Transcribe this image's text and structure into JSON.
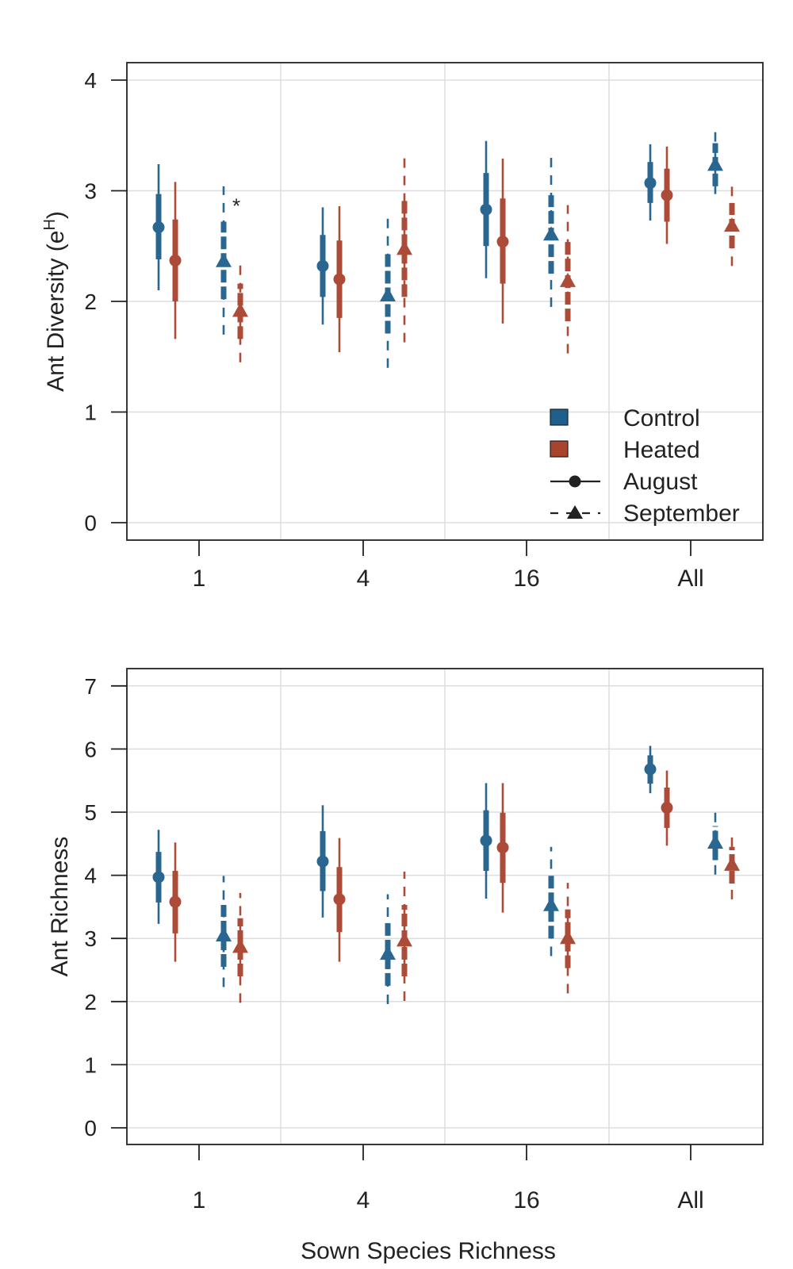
{
  "colors": {
    "control": "#1f5f8b",
    "heated": "#a8432e",
    "grid": "#dddddd",
    "axis": "#222222",
    "legend_line": "#222222"
  },
  "chart_data": [
    {
      "type": "interval-plot",
      "xlabel": "",
      "ylabel_main": "Ant Diversity (e",
      "ylabel_sup": "H",
      "ylabel_close": ")",
      "ylim": [
        0,
        4
      ],
      "yticks": [
        "0",
        "1",
        "2",
        "3",
        "4"
      ],
      "categories": [
        "1",
        "4",
        "16",
        "All"
      ],
      "annotation": {
        "text": "*",
        "category": "1",
        "series": "Control-September"
      },
      "legend": {
        "placement": "bottom-right",
        "entries": [
          {
            "label": "Control",
            "kind": "box",
            "color": "control"
          },
          {
            "label": "Heated",
            "kind": "box",
            "color": "heated"
          },
          {
            "label": "August",
            "kind": "line-circle"
          },
          {
            "label": "September",
            "kind": "dash-triangle"
          }
        ]
      },
      "series": [
        {
          "name": "Control",
          "month": "August",
          "color": "control",
          "marker": "circle",
          "dashed": false,
          "points": [
            {
              "mean": 2.67,
              "inner": [
                2.38,
                2.97
              ],
              "outer": [
                2.1,
                3.24
              ]
            },
            {
              "mean": 2.32,
              "inner": [
                2.04,
                2.6
              ],
              "outer": [
                1.79,
                2.85
              ]
            },
            {
              "mean": 2.83,
              "inner": [
                2.5,
                3.16
              ],
              "outer": [
                2.21,
                3.45
              ]
            },
            {
              "mean": 3.07,
              "inner": [
                2.89,
                3.26
              ],
              "outer": [
                2.73,
                3.42
              ]
            }
          ]
        },
        {
          "name": "Heated",
          "month": "August",
          "color": "heated",
          "marker": "circle",
          "dashed": false,
          "points": [
            {
              "mean": 2.37,
              "inner": [
                2.0,
                2.74
              ],
              "outer": [
                1.66,
                3.08
              ]
            },
            {
              "mean": 2.2,
              "inner": [
                1.85,
                2.55
              ],
              "outer": [
                1.54,
                2.86
              ]
            },
            {
              "mean": 2.54,
              "inner": [
                2.16,
                2.93
              ],
              "outer": [
                1.8,
                3.29
              ]
            },
            {
              "mean": 2.96,
              "inner": [
                2.72,
                3.2
              ],
              "outer": [
                2.52,
                3.4
              ]
            }
          ]
        },
        {
          "name": "Control",
          "month": "September",
          "color": "control",
          "marker": "triangle",
          "dashed": true,
          "points": [
            {
              "mean": 2.36,
              "inner": [
                2.02,
                2.72
              ],
              "outer": [
                1.7,
                3.04
              ]
            },
            {
              "mean": 2.05,
              "inner": [
                1.71,
                2.43
              ],
              "outer": [
                1.4,
                2.76
              ]
            },
            {
              "mean": 2.6,
              "inner": [
                2.25,
                2.96
              ],
              "outer": [
                1.95,
                3.3
              ]
            },
            {
              "mean": 3.23,
              "inner": [
                3.04,
                3.43
              ],
              "outer": [
                2.97,
                3.6
              ]
            }
          ]
        },
        {
          "name": "Heated",
          "month": "September",
          "color": "heated",
          "marker": "triangle",
          "dashed": true,
          "points": [
            {
              "mean": 1.91,
              "inner": [
                1.66,
                2.16
              ],
              "outer": [
                1.45,
                2.38
              ]
            },
            {
              "mean": 2.47,
              "inner": [
                2.04,
                2.93
              ],
              "outer": [
                1.63,
                3.35
              ]
            },
            {
              "mean": 2.18,
              "inner": [
                1.82,
                2.55
              ],
              "outer": [
                1.53,
                2.87
              ]
            },
            {
              "mean": 2.68,
              "inner": [
                2.48,
                2.89
              ],
              "outer": [
                2.32,
                3.08
              ]
            }
          ]
        }
      ]
    },
    {
      "type": "interval-plot",
      "xlabel": "Sown Species Richness",
      "ylabel_main": "Ant Richness",
      "ylabel_sup": "",
      "ylabel_close": "",
      "ylim": [
        0,
        7
      ],
      "yticks": [
        "0",
        "1",
        "2",
        "3",
        "4",
        "5",
        "6",
        "7"
      ],
      "categories": [
        "1",
        "4",
        "16",
        "All"
      ],
      "series": [
        {
          "name": "Control",
          "month": "August",
          "color": "control",
          "marker": "circle",
          "dashed": false,
          "points": [
            {
              "mean": 3.97,
              "inner": [
                3.57,
                4.37
              ],
              "outer": [
                3.23,
                4.72
              ]
            },
            {
              "mean": 4.22,
              "inner": [
                3.75,
                4.7
              ],
              "outer": [
                3.33,
                5.11
              ]
            },
            {
              "mean": 4.55,
              "inner": [
                4.07,
                5.03
              ],
              "outer": [
                3.63,
                5.46
              ]
            },
            {
              "mean": 5.68,
              "inner": [
                5.45,
                5.9
              ],
              "outer": [
                5.3,
                6.05
              ]
            }
          ]
        },
        {
          "name": "Heated",
          "month": "August",
          "color": "heated",
          "marker": "circle",
          "dashed": false,
          "points": [
            {
              "mean": 3.58,
              "inner": [
                3.08,
                4.07
              ],
              "outer": [
                2.63,
                4.52
              ]
            },
            {
              "mean": 3.62,
              "inner": [
                3.1,
                4.13
              ],
              "outer": [
                2.63,
                4.59
              ]
            },
            {
              "mean": 4.44,
              "inner": [
                3.88,
                4.99
              ],
              "outer": [
                3.41,
                5.46
              ]
            },
            {
              "mean": 5.07,
              "inner": [
                4.75,
                5.39
              ],
              "outer": [
                4.47,
                5.66
              ]
            }
          ]
        },
        {
          "name": "Control",
          "month": "September",
          "color": "control",
          "marker": "triangle",
          "dashed": true,
          "points": [
            {
              "mean": 3.04,
              "inner": [
                2.55,
                3.53
              ],
              "outer": [
                2.23,
                3.99
              ]
            },
            {
              "mean": 2.75,
              "inner": [
                2.25,
                3.25
              ],
              "outer": [
                1.96,
                3.7
              ]
            },
            {
              "mean": 3.52,
              "inner": [
                3.0,
                4.0
              ],
              "outer": [
                2.72,
                4.45
              ]
            },
            {
              "mean": 4.51,
              "inner": [
                4.24,
                4.78
              ],
              "outer": [
                4.01,
                5.02
              ]
            }
          ]
        },
        {
          "name": "Heated",
          "month": "September",
          "color": "heated",
          "marker": "triangle",
          "dashed": true,
          "points": [
            {
              "mean": 2.86,
              "inner": [
                2.4,
                3.32
              ],
              "outer": [
                1.98,
                3.72
              ]
            },
            {
              "mean": 2.96,
              "inner": [
                2.4,
                3.53
              ],
              "outer": [
                2.01,
                4.06
              ]
            },
            {
              "mean": 3.0,
              "inner": [
                2.53,
                3.46
              ],
              "outer": [
                2.13,
                3.88
              ]
            },
            {
              "mean": 4.16,
              "inner": [
                3.87,
                4.45
              ],
              "outer": [
                3.62,
                4.72
              ]
            }
          ]
        }
      ]
    }
  ]
}
